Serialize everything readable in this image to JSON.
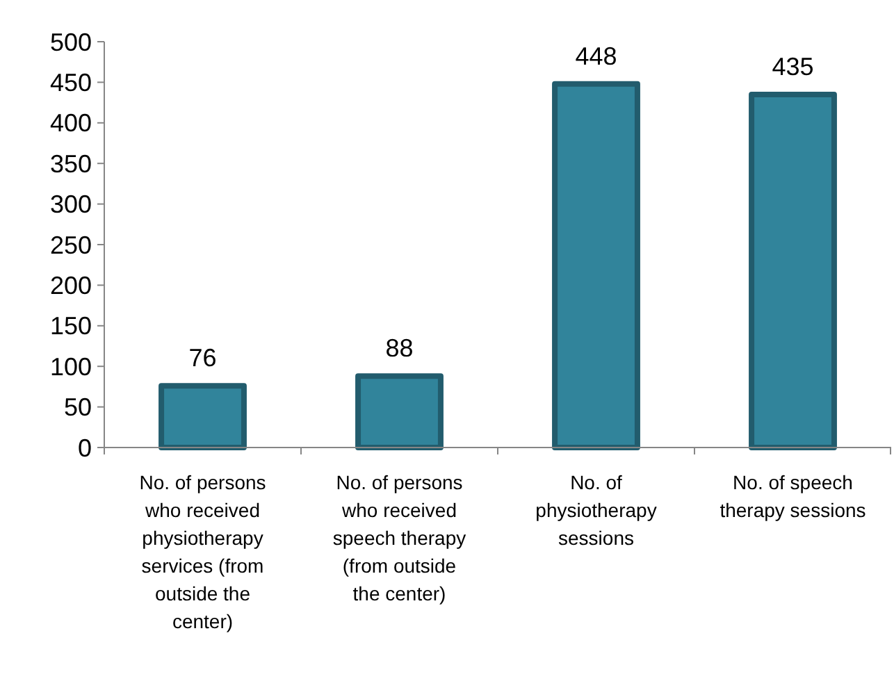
{
  "chart_data": {
    "type": "bar",
    "categories": [
      "No. of persons who received physiotherapy services (from outside the center)",
      "No. of persons who received speech therapy (from outside the center)",
      "No. of physiotherapy sessions",
      "No. of speech therapy sessions"
    ],
    "values": [
      76,
      88,
      448,
      435
    ],
    "color": "#31849b",
    "ylim": [
      0,
      500
    ],
    "yticks": [
      0,
      50,
      100,
      150,
      200,
      250,
      300,
      350,
      400,
      450,
      500
    ],
    "grid": false,
    "data_labels": true
  }
}
